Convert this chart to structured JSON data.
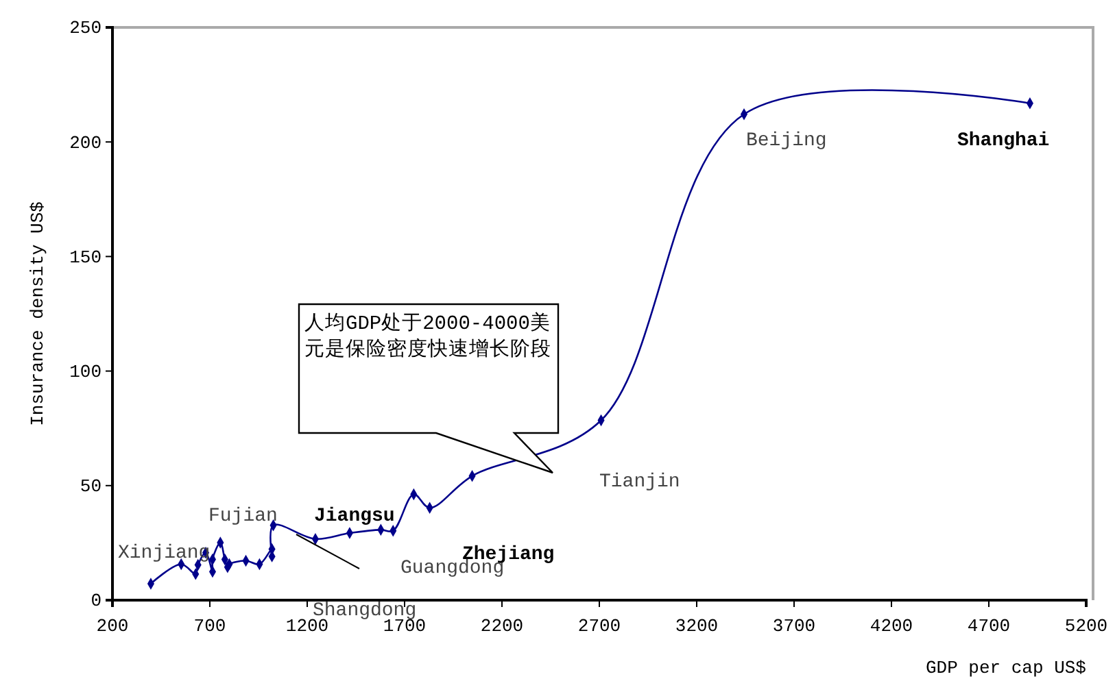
{
  "chart_data": {
    "type": "line",
    "xlabel": "GDP per cap US$",
    "ylabel": "Insurance density US$",
    "xlim": [
      200,
      5200
    ],
    "xticks": [
      200,
      700,
      1200,
      1700,
      2200,
      2700,
      3200,
      3700,
      4200,
      4700,
      5200
    ],
    "ylim": [
      0,
      250
    ],
    "yticks": [
      0,
      50,
      100,
      150,
      200,
      250
    ],
    "marker": "diamond",
    "grid": false,
    "series": [
      {
        "color": "#00008b",
        "x": [
          397,
          553,
          627,
          639,
          679,
          714,
          714,
          754,
          777,
          791,
          800,
          885,
          955,
          1019,
          1019,
          1026,
          1242,
          1418,
          1578,
          1641,
          1747,
          1829,
          2047,
          2709,
          3443,
          4911
        ],
        "values": [
          7.2,
          15.7,
          11.4,
          15.4,
          20.7,
          12.4,
          17.8,
          25.1,
          17.8,
          14.4,
          15.7,
          17.2,
          15.7,
          22.3,
          19.1,
          32.7,
          26.7,
          29.3,
          30.7,
          30.3,
          46.2,
          40.3,
          54.2,
          78.5,
          212.1,
          216.9
        ]
      }
    ],
    "annotations": [
      "Xinjiang",
      "Fujian",
      "Jiangsu",
      "Zhejiang",
      "Guangdong",
      "Shangdong",
      "Tianjin",
      "Beijing",
      "Shanghai",
      "人均GDP处于2000-4000美元是保险密度快速增长阶段"
    ]
  }
}
